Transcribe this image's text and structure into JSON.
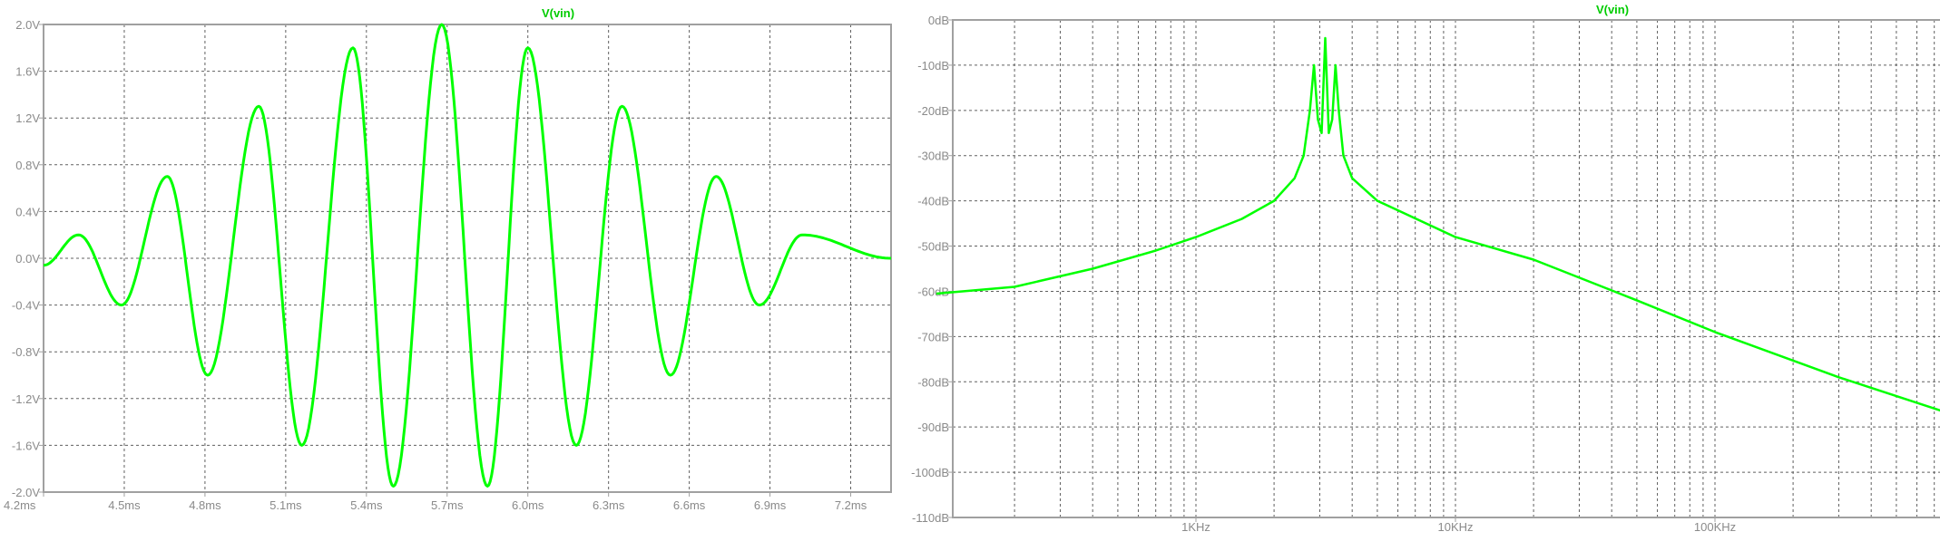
{
  "chart_data": [
    {
      "type": "line",
      "title": "V(vin)",
      "x_unit": "ms",
      "y_unit": "V",
      "xlim": [
        4.2,
        7.35
      ],
      "ylim": [
        -2.0,
        2.0
      ],
      "x_ticks": [
        "4.2ms",
        "4.5ms",
        "4.8ms",
        "5.1ms",
        "5.4ms",
        "5.7ms",
        "6.0ms",
        "6.3ms",
        "6.6ms",
        "6.9ms",
        "7.2ms"
      ],
      "y_ticks": [
        "2.0V",
        "1.6V",
        "1.2V",
        "0.8V",
        "0.4V",
        "0.0V",
        "-0.4V",
        "-0.8V",
        "-1.2V",
        "-1.6V",
        "-2.0V"
      ],
      "series": [
        {
          "name": "V(vin)",
          "color": "#00ff00",
          "waveform": "sine burst, symmetric envelope",
          "peaks": [
            {
              "x": 4.33,
              "y": 0.2
            },
            {
              "x": 4.49,
              "y": -0.4
            },
            {
              "x": 4.66,
              "y": 0.7
            },
            {
              "x": 4.81,
              "y": -1.0
            },
            {
              "x": 5.0,
              "y": 1.3
            },
            {
              "x": 5.16,
              "y": -1.6
            },
            {
              "x": 5.35,
              "y": 1.8
            },
            {
              "x": 5.5,
              "y": -1.95
            },
            {
              "x": 5.68,
              "y": 2.0
            },
            {
              "x": 5.85,
              "y": -1.95
            },
            {
              "x": 6.0,
              "y": 1.8
            },
            {
              "x": 6.18,
              "y": -1.6
            },
            {
              "x": 6.35,
              "y": 1.3
            },
            {
              "x": 6.53,
              "y": -1.0
            },
            {
              "x": 6.7,
              "y": 0.7
            },
            {
              "x": 6.86,
              "y": -0.4
            },
            {
              "x": 7.02,
              "y": 0.2
            },
            {
              "x": 7.35,
              "y": 0.0
            }
          ]
        }
      ],
      "grid": true
    },
    {
      "type": "line",
      "title": "V(vin)",
      "x_unit": "Hz",
      "y_unit": "dB",
      "x_scale": "log",
      "xlim": [
        100,
        1000000
      ],
      "ylim": [
        -110,
        0
      ],
      "x_ticks": [
        "1KHz",
        "10KHz",
        "100KHz"
      ],
      "y_ticks": [
        "0dB",
        "-10dB",
        "-20dB",
        "-30dB",
        "-40dB",
        "-50dB",
        "-60dB",
        "-70dB",
        "-80dB",
        "-90dB",
        "-100dB",
        "-110dB"
      ],
      "series": [
        {
          "name": "V(vin)",
          "color": "#00ff00",
          "points": [
            {
              "x": 100,
              "y": -60.5
            },
            {
              "x": 200,
              "y": -59
            },
            {
              "x": 400,
              "y": -55
            },
            {
              "x": 700,
              "y": -51
            },
            {
              "x": 1000,
              "y": -48
            },
            {
              "x": 1500,
              "y": -44
            },
            {
              "x": 2000,
              "y": -40
            },
            {
              "x": 2400,
              "y": -35
            },
            {
              "x": 2600,
              "y": -30
            },
            {
              "x": 2750,
              "y": -20
            },
            {
              "x": 2850,
              "y": -10
            },
            {
              "x": 2950,
              "y": -22
            },
            {
              "x": 3050,
              "y": -25
            },
            {
              "x": 3150,
              "y": -4
            },
            {
              "x": 3250,
              "y": -25
            },
            {
              "x": 3350,
              "y": -22
            },
            {
              "x": 3450,
              "y": -10
            },
            {
              "x": 3550,
              "y": -20
            },
            {
              "x": 3700,
              "y": -30
            },
            {
              "x": 4000,
              "y": -35
            },
            {
              "x": 5000,
              "y": -40
            },
            {
              "x": 10000,
              "y": -48
            },
            {
              "x": 20000,
              "y": -53
            },
            {
              "x": 50000,
              "y": -62
            },
            {
              "x": 100000,
              "y": -69
            },
            {
              "x": 300000,
              "y": -79
            },
            {
              "x": 800000,
              "y": -87
            }
          ]
        }
      ],
      "grid": true
    }
  ],
  "colors": {
    "trace": "#00ff00",
    "title": "#00cc00",
    "axis": "#a0a0a0",
    "grid": "#606060",
    "tick_text": "#8a8a8a"
  }
}
